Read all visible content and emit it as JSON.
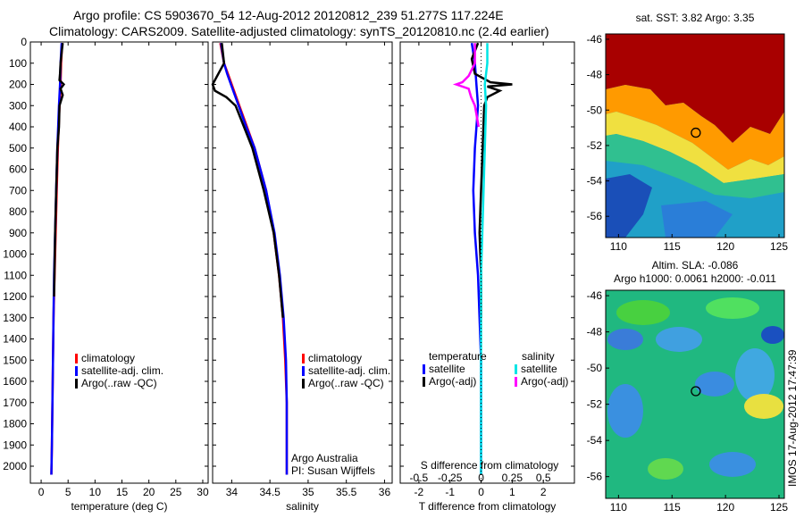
{
  "header": {
    "title_line1": "Argo profile: CS 5903670_54 12-Aug-2012 20120812_239 51.277S 117.224E",
    "title_line2": "Climatology: CARS2009. Satellite-adjusted climatology: synTS_20120810.nc (2.4d earlier)"
  },
  "stamp": "IMOS 17-Aug-2012 17:47:39",
  "colors": {
    "climatology": "#ff0000",
    "satellite": "#0000ff",
    "argo": "#000000",
    "salinity_sat": "#00e5e5",
    "salinity_argo": "#ff00ff"
  },
  "chart_data": [
    {
      "type": "line",
      "id": "temperature",
      "xlabel": "temperature (deg C)",
      "ylabel": "",
      "xlim": [
        -2,
        31
      ],
      "ylim": [
        2080,
        0
      ],
      "xticks": [
        "0",
        "5",
        "10",
        "15",
        "20",
        "25",
        "30"
      ],
      "xtick_values": [
        0,
        5,
        10,
        15,
        20,
        25,
        30
      ],
      "yticks": [
        "0",
        "100",
        "200",
        "300",
        "400",
        "500",
        "600",
        "700",
        "800",
        "900",
        "1000",
        "1100",
        "1200",
        "1300",
        "1400",
        "1500",
        "1600",
        "1700",
        "1800",
        "1900",
        "2000"
      ],
      "ytick_values": [
        0,
        100,
        200,
        300,
        400,
        500,
        600,
        700,
        800,
        900,
        1000,
        1100,
        1200,
        1300,
        1400,
        1500,
        1600,
        1700,
        1800,
        1900,
        2000
      ],
      "legend": [
        "climatology",
        "satellite-adj. clim.",
        "Argo(..raw -QC)"
      ],
      "series": [
        {
          "name": "climatology",
          "color": "#ff0000",
          "depth": [
            5,
            100,
            200,
            300,
            500,
            700,
            900,
            1100,
            1300,
            1500,
            1700,
            1900,
            2040
          ],
          "values": [
            3.9,
            3.7,
            3.6,
            3.4,
            3.1,
            2.9,
            2.7,
            2.5,
            2.3,
            2.2,
            2.1,
            2.0,
            1.9
          ]
        },
        {
          "name": "satellite-adj. clim.",
          "color": "#0000ff",
          "depth": [
            5,
            100,
            200,
            300,
            500,
            700,
            900,
            1100,
            1300,
            1500,
            1700,
            1900,
            2040
          ],
          "values": [
            3.8,
            3.6,
            3.5,
            3.3,
            3.0,
            2.8,
            2.6,
            2.4,
            2.3,
            2.2,
            2.1,
            2.0,
            1.9
          ]
        },
        {
          "name": "Argo(..raw -QC)",
          "color": "#000000",
          "depth": [
            5,
            50,
            100,
            150,
            180,
            200,
            220,
            250,
            300,
            400,
            500,
            700,
            900,
            1200
          ],
          "values": [
            4.0,
            3.8,
            3.6,
            3.5,
            3.4,
            4.2,
            3.6,
            4.0,
            3.4,
            3.3,
            3.0,
            2.8,
            2.6,
            2.4
          ]
        }
      ]
    },
    {
      "type": "line",
      "id": "salinity",
      "xlabel": "salinity",
      "ylabel": "",
      "xlim": [
        33.75,
        36.1
      ],
      "ylim": [
        2080,
        0
      ],
      "xticks": [
        "34",
        "34.5",
        "35",
        "35.5",
        "36"
      ],
      "xtick_values": [
        34,
        34.5,
        35,
        35.5,
        36
      ],
      "legend": [
        "climatology",
        "satellite-adj. clim.",
        "Argo(..raw -QC)"
      ],
      "annotation": [
        "Argo Australia",
        "PI: Susan Wijffels"
      ],
      "series": [
        {
          "name": "climatology",
          "color": "#ff0000",
          "depth": [
            5,
            100,
            150,
            200,
            300,
            400,
            500,
            700,
            900,
            1100,
            1300,
            1500,
            1700,
            1900,
            2040
          ],
          "values": [
            33.85,
            33.9,
            33.95,
            34.0,
            34.1,
            34.2,
            34.3,
            34.45,
            34.55,
            34.62,
            34.67,
            34.7,
            34.72,
            34.72,
            34.72
          ]
        },
        {
          "name": "satellite-adj. clim.",
          "color": "#0000ff",
          "depth": [
            5,
            100,
            150,
            200,
            300,
            400,
            500,
            700,
            900,
            1100,
            1300,
            1500,
            1700,
            1900,
            2040
          ],
          "values": [
            33.86,
            33.9,
            33.94,
            33.99,
            34.09,
            34.19,
            34.3,
            34.45,
            34.56,
            34.63,
            34.68,
            34.71,
            34.72,
            34.72,
            34.72
          ]
        },
        {
          "name": "Argo(..raw -QC)",
          "color": "#000000",
          "depth": [
            5,
            100,
            200,
            230,
            260,
            300,
            400,
            500,
            700,
            900,
            1100,
            1300
          ],
          "values": [
            33.87,
            33.9,
            33.75,
            33.78,
            33.93,
            34.05,
            34.16,
            34.27,
            34.42,
            34.55,
            34.62,
            34.67
          ]
        }
      ]
    },
    {
      "type": "line",
      "id": "difference",
      "xlabel": "T difference from climatology",
      "xlabel_top": "S difference from climatology",
      "xlim": [
        -2.6,
        3.0
      ],
      "ylim": [
        2080,
        0
      ],
      "xticks": [
        "-2",
        "-1",
        "0",
        "1",
        "2"
      ],
      "xtick_values": [
        -2,
        -1,
        0,
        1,
        2
      ],
      "s_ticks": [
        "-0.5",
        "-0.25",
        "0",
        "0.25",
        "0.5"
      ],
      "s_tick_values": [
        -0.5,
        -0.25,
        0,
        0.25,
        0.5
      ],
      "legend_temperature": {
        "title": "temperature",
        "items": [
          "satellite",
          "Argo(-adj)"
        ]
      },
      "legend_salinity": {
        "title": "salinity",
        "items": [
          "satellite",
          "Argo(-adj)"
        ]
      },
      "series": [
        {
          "name": "satellite",
          "group": "temperature",
          "color": "#0000ff",
          "depth": [
            5,
            100,
            200,
            300,
            500,
            700,
            900,
            1100,
            1300,
            1500,
            1700,
            1900,
            2040
          ],
          "values": [
            -0.3,
            -0.2,
            -0.15,
            -0.1,
            -0.2,
            -0.25,
            -0.2,
            -0.1,
            -0.05,
            0.0,
            0.0,
            0.0,
            0.0
          ]
        },
        {
          "name": "Argo(-adj)",
          "group": "temperature",
          "color": "#000000",
          "depth": [
            5,
            80,
            150,
            190,
            200,
            210,
            230,
            260,
            300,
            500,
            700,
            900,
            1100,
            1300
          ],
          "values": [
            -0.1,
            -0.3,
            -0.2,
            0.3,
            1.0,
            0.2,
            0.6,
            0.2,
            0.1,
            0.05,
            0.0,
            -0.05,
            0.0,
            0.0
          ]
        },
        {
          "name": "satellite",
          "group": "salinity",
          "color": "#00e5e5",
          "depth": [
            5,
            100,
            200,
            300,
            500,
            700,
            900,
            1100,
            1300,
            1500,
            1700,
            1900,
            2040
          ],
          "values": [
            0.05,
            0.05,
            0.03,
            0.04,
            0.03,
            0.02,
            0.01,
            0.0,
            0.0,
            0.0,
            0.0,
            0.0,
            0.0
          ]
        },
        {
          "name": "Argo(-adj)",
          "group": "salinity",
          "color": "#ff00ff",
          "depth": [
            5,
            100,
            160,
            190,
            200,
            220,
            260,
            300,
            400
          ],
          "values": [
            -0.05,
            -0.05,
            -0.1,
            -0.15,
            -0.2,
            -0.1,
            -0.08,
            -0.05,
            -0.02
          ]
        }
      ]
    },
    {
      "type": "heatmap",
      "id": "sst_map",
      "title": "sat. SST: 3.82 Argo: 3.35",
      "xticks": [
        "110",
        "115",
        "120",
        "125"
      ],
      "xtick_values": [
        110,
        115,
        120,
        125
      ],
      "yticks": [
        "-46",
        "-48",
        "-50",
        "-52",
        "-54",
        "-56"
      ],
      "ytick_values": [
        -46,
        -48,
        -50,
        -52,
        -54,
        -56
      ],
      "xlim": [
        108.8,
        125.5
      ],
      "ylim": [
        -57.2,
        -45.7
      ],
      "marker": {
        "lon": 117.224,
        "lat": -51.277
      }
    },
    {
      "type": "heatmap",
      "id": "sla_map",
      "title": "Altim. SLA: -0.086",
      "subtitle": "Argo h1000: 0.0061 h2000: -0.011",
      "xticks": [
        "110",
        "115",
        "120",
        "125"
      ],
      "xtick_values": [
        110,
        115,
        120,
        125
      ],
      "yticks": [
        "-46",
        "-48",
        "-50",
        "-52",
        "-54",
        "-56"
      ],
      "ytick_values": [
        -46,
        -48,
        -50,
        -52,
        -54,
        -56
      ],
      "xlim": [
        108.8,
        125.5
      ],
      "ylim": [
        -57.2,
        -45.7
      ],
      "marker": {
        "lon": 117.224,
        "lat": -51.277
      }
    }
  ]
}
